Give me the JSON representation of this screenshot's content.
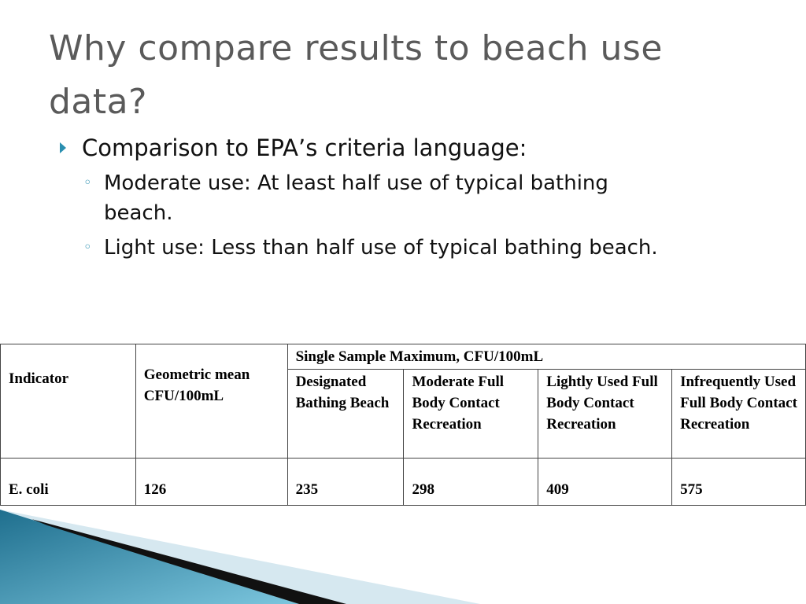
{
  "title": "Why compare results to beach use data?",
  "bullets": [
    {
      "text": "Comparison to EPA’s criteria language:",
      "sub": [
        "Moderate use: At least half use of typical bathing beach.",
        "Light use: Less than half use of typical bathing beach."
      ]
    }
  ],
  "table": {
    "header": {
      "indicator": "Indicator",
      "geomean": "Geometric mean CFU/100mL",
      "group": "Single Sample Maximum, CFU/100mL",
      "columns": [
        "Designated Bathing Beach",
        "Moderate Full Body Contact Recreation",
        "Lightly Used Full Body Contact Recreation",
        "Infrequently Used Full Body Contact Recreation"
      ]
    },
    "rows": [
      [
        "E. coli",
        126,
        235,
        298,
        409,
        575
      ]
    ]
  }
}
